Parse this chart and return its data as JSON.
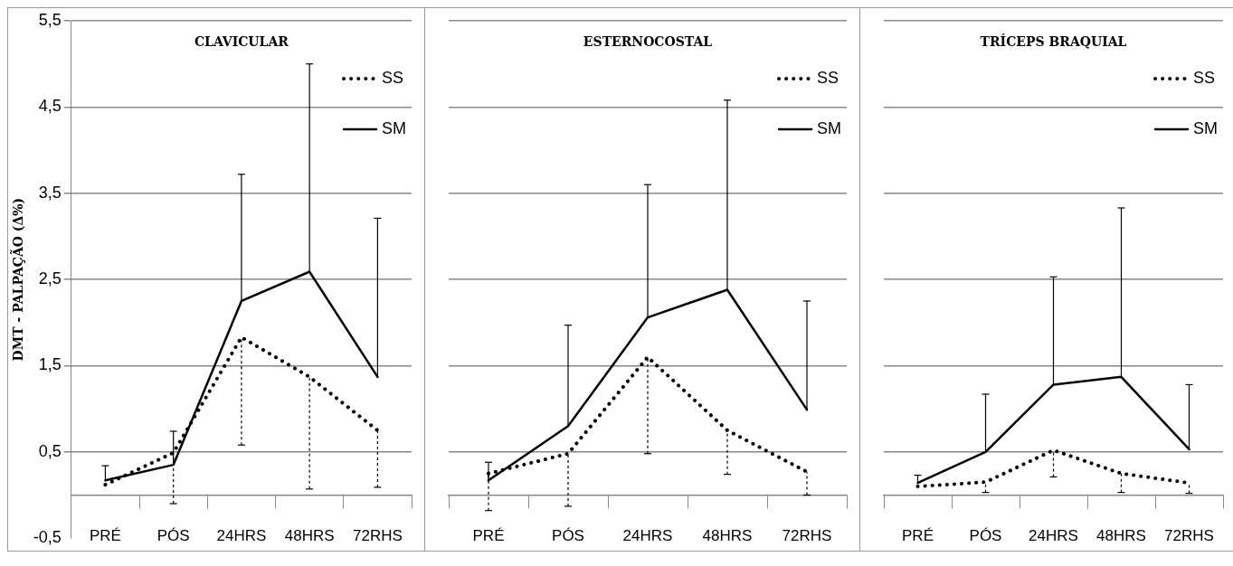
{
  "chart_data": [
    {
      "type": "line",
      "title": "CLAVICULAR",
      "ylabel": "DMT - PALPAÇÃO (Δ%)",
      "categories": [
        "PRÉ",
        "PÓS",
        "24HRS",
        "48HRS",
        "72RHS"
      ],
      "series": [
        {
          "name": "SS",
          "color": "#000000",
          "line_style": "dotted",
          "values": [
            0.12,
            0.49,
            1.83,
            1.37,
            0.75
          ],
          "errors": [
            null,
            [
              -0.1,
              0.49
            ],
            [
              0.58,
              1.83
            ],
            [
              0.07,
              1.37
            ],
            [
              0.09,
              0.75
            ]
          ]
        },
        {
          "name": "SM",
          "color": "#000000",
          "line_style": "solid",
          "values": [
            0.17,
            0.35,
            2.25,
            2.59,
            1.37
          ],
          "errors": [
            [
              0.17,
              0.34
            ],
            [
              0.35,
              0.74
            ],
            [
              2.25,
              3.72
            ],
            [
              2.59,
              5.0
            ],
            [
              1.37,
              3.21
            ]
          ]
        }
      ],
      "ylim": [
        -0.5,
        5.5
      ],
      "yticks": [
        {
          "value": -0.5,
          "label": "-0,5"
        },
        {
          "value": 0.5,
          "label": "0,5"
        },
        {
          "value": 1.5,
          "label": "1,5"
        },
        {
          "value": 2.5,
          "label": "2,5"
        },
        {
          "value": 3.5,
          "label": "3,5"
        },
        {
          "value": 4.5,
          "label": "4,5"
        },
        {
          "value": 5.5,
          "label": "5,5"
        }
      ],
      "grid": "y",
      "legend": "top right",
      "marker": "none"
    },
    {
      "type": "line",
      "title": "ESTERNOCOSTAL",
      "categories": [
        "PRÉ",
        "PÓS",
        "24HRS",
        "48HRS",
        "72RHS"
      ],
      "series": [
        {
          "name": "SS",
          "color": "#000000",
          "line_style": "dotted",
          "values": [
            0.25,
            0.48,
            1.6,
            0.75,
            0.27
          ],
          "errors": [
            [
              -0.18,
              0.25
            ],
            [
              -0.13,
              0.48
            ],
            [
              0.48,
              1.6
            ],
            [
              0.24,
              0.75
            ],
            [
              0.0,
              0.27
            ]
          ]
        },
        {
          "name": "SM",
          "color": "#000000",
          "line_style": "solid",
          "values": [
            0.17,
            0.8,
            2.06,
            2.38,
            0.99
          ],
          "errors": [
            [
              0.17,
              0.38
            ],
            [
              0.8,
              1.97
            ],
            [
              2.06,
              3.6
            ],
            [
              2.38,
              4.58
            ],
            [
              0.99,
              2.25
            ]
          ]
        }
      ],
      "ylim": [
        -0.5,
        5.5
      ],
      "yticks": [
        {
          "value": -0.5,
          "label": null
        },
        {
          "value": 0.5,
          "label": null
        },
        {
          "value": 1.5,
          "label": null
        },
        {
          "value": 2.5,
          "label": null
        },
        {
          "value": 3.5,
          "label": null
        },
        {
          "value": 4.5,
          "label": null
        },
        {
          "value": 5.5,
          "label": null
        }
      ],
      "grid": "y",
      "legend": "top right",
      "marker": "none",
      "tick_labels": "x"
    },
    {
      "type": "line",
      "title": "TRÍCEPS BRAQUIAL",
      "categories": [
        "PRÉ",
        "PÓS",
        "24HRS",
        "48HRS",
        "72RHS"
      ],
      "series": [
        {
          "name": "SS",
          "color": "#000000",
          "line_style": "dotted",
          "values": [
            0.1,
            0.15,
            0.52,
            0.25,
            0.14
          ],
          "errors": [
            null,
            [
              0.03,
              0.15
            ],
            [
              0.21,
              0.52
            ],
            [
              0.03,
              0.25
            ],
            [
              0.02,
              0.14
            ]
          ]
        },
        {
          "name": "SM",
          "color": "#000000",
          "line_style": "solid",
          "values": [
            0.14,
            0.5,
            1.28,
            1.37,
            0.53
          ],
          "errors": [
            [
              0.14,
              0.23
            ],
            [
              0.5,
              1.17
            ],
            [
              1.28,
              2.53
            ],
            [
              1.37,
              3.33
            ],
            [
              0.53,
              1.28
            ]
          ]
        }
      ],
      "ylim": [
        -0.5,
        5.5
      ],
      "yticks": [
        {
          "value": -0.5,
          "label": null
        },
        {
          "value": 0.5,
          "label": null
        },
        {
          "value": 1.5,
          "label": null
        },
        {
          "value": 2.5,
          "label": null
        },
        {
          "value": 3.5,
          "label": null
        },
        {
          "value": 4.5,
          "label": null
        },
        {
          "value": 5.5,
          "label": null
        }
      ],
      "grid": "y",
      "legend": "top right",
      "marker": "none",
      "tick_labels": "x"
    }
  ]
}
